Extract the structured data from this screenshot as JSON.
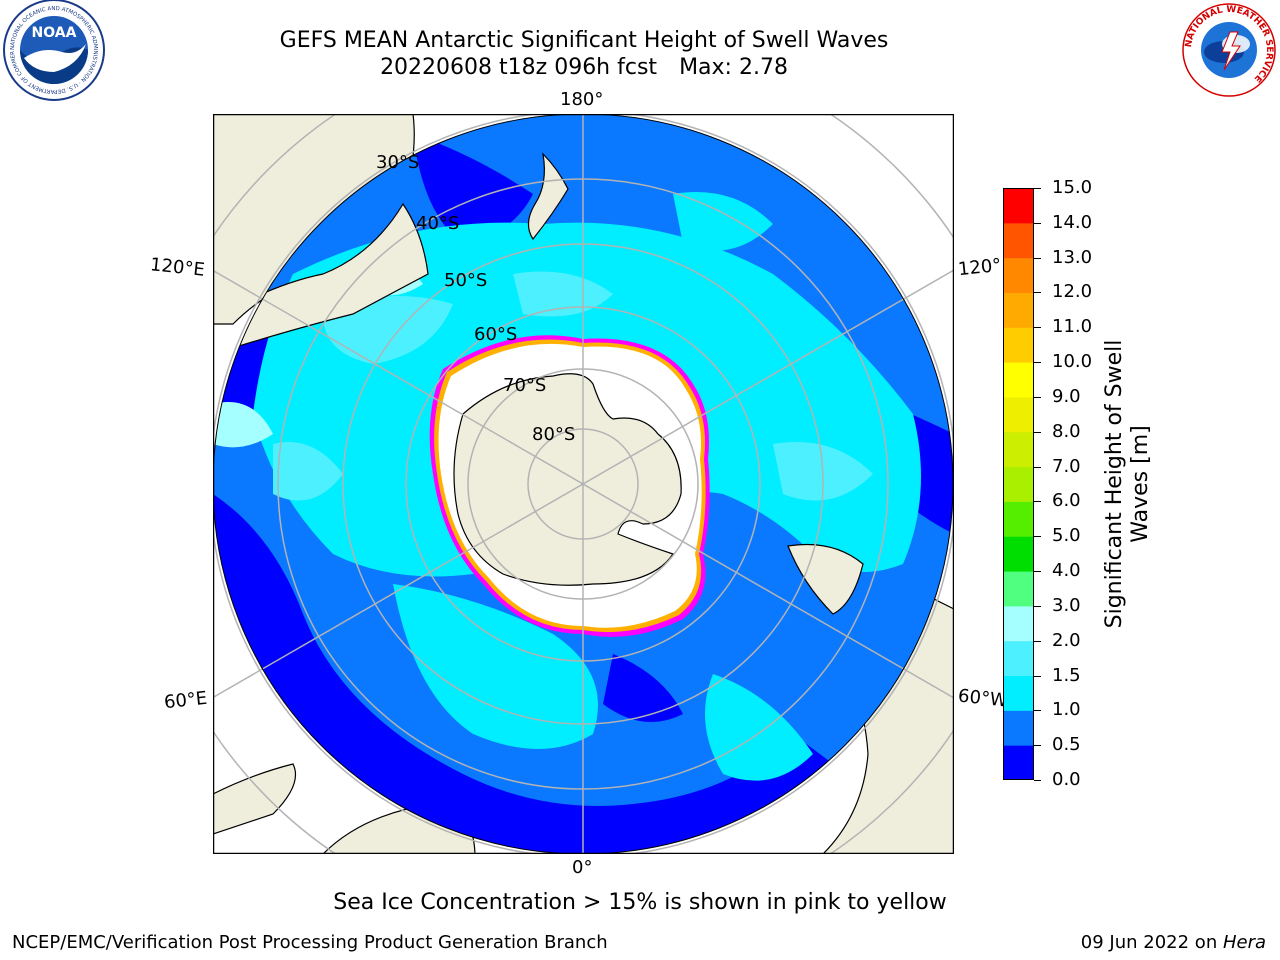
{
  "header": {
    "title_line1": "GEFS MEAN Antarctic Significant Height of Swell Waves",
    "title_date": "20220608 t18z 096h fcst",
    "title_max": "Max: 2.78"
  },
  "logos": {
    "noaa": {
      "text": "NOAA",
      "ring_text": "NATIONAL OCEANIC AND ATMOSPHERIC ADMINISTRATION · U.S. DEPARTMENT OF COMMERCE"
    },
    "nws": {
      "ring_text": "NATIONAL WEATHER SERVICE"
    }
  },
  "map": {
    "projection": "south-polar-stereographic",
    "longitude_labels": {
      "top": "180°",
      "bottom": "0°",
      "left_upper": "120°E",
      "left_lower": "60°E",
      "right_upper": "120°",
      "right_lower": "60°W"
    },
    "latitude_labels": [
      "30°S",
      "40°S",
      "50°S",
      "60°S",
      "70°S",
      "80°S"
    ],
    "colors": {
      "land": "#efeedd",
      "ice": "#ffffff",
      "ice_edge": [
        "#ff00ff",
        "#ffb000",
        "#ffe000"
      ],
      "grid": "#b3b3b3"
    }
  },
  "colorbar": {
    "label_line1": "Significant Height of Swell",
    "label_line2": "Waves [m]",
    "ticks": [
      "0.0",
      "0.5",
      "1.0",
      "1.5",
      "2.0",
      "3.0",
      "4.0",
      "5.0",
      "6.0",
      "7.0",
      "8.0",
      "9.0",
      "10.0",
      "11.0",
      "12.0",
      "13.0",
      "14.0",
      "15.0"
    ],
    "colors": [
      "#0000ff",
      "#0a78ff",
      "#00eeff",
      "#4df0ff",
      "#a6ffff",
      "#50ff80",
      "#00dd00",
      "#55ee00",
      "#aaee00",
      "#ccee00",
      "#eeee00",
      "#ffff00",
      "#ffcc00",
      "#ffaa00",
      "#ff8800",
      "#ff5500",
      "#ff0000"
    ]
  },
  "notes": {
    "sea_ice": "Sea Ice Concentration > 15% is shown in pink to yellow"
  },
  "footer": {
    "left": "NCEP/EMC/Verification Post Processing Product Generation Branch",
    "right_prefix": "09 Jun 2022 on ",
    "right_host": "Hera"
  }
}
